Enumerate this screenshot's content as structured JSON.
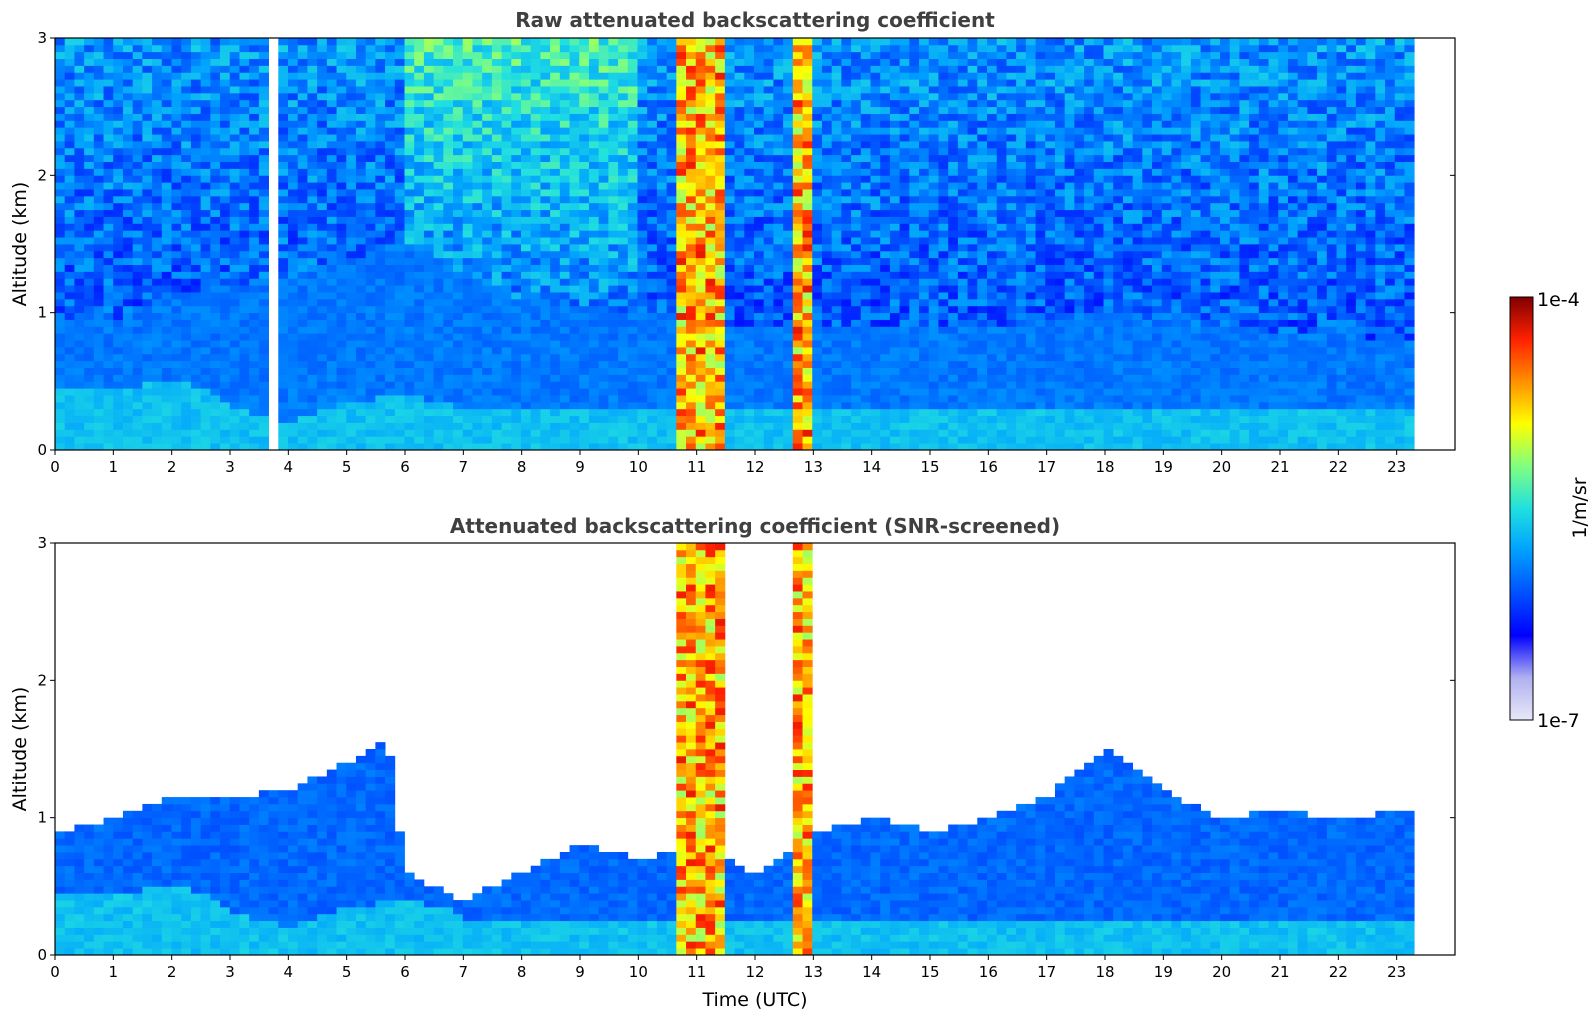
{
  "chart_data": [
    {
      "type": "heatmap",
      "title": "Raw attenuated backscattering coefficient",
      "xlabel": "",
      "ylabel": "Altitude (km)",
      "xlim": [
        0,
        24
      ],
      "ylim": [
        0,
        3
      ],
      "x_ticks": [
        "0",
        "1",
        "2",
        "3",
        "4",
        "5",
        "6",
        "7",
        "8",
        "9",
        "10",
        "11",
        "12",
        "13",
        "14",
        "15",
        "16",
        "17",
        "18",
        "19",
        "20",
        "21",
        "22",
        "23"
      ],
      "y_ticks": [
        "0",
        "1",
        "2",
        "3"
      ],
      "data_extent_x": [
        0,
        23.3
      ],
      "features": {
        "boundary_layer_top_km": [
          [
            0,
            0.95
          ],
          [
            1,
            0.95
          ],
          [
            1.5,
            1.05
          ],
          [
            2,
            1.15
          ],
          [
            3,
            1.2
          ],
          [
            4,
            1.25
          ],
          [
            5,
            1.4
          ],
          [
            6,
            1.5
          ],
          [
            8,
            1.1
          ],
          [
            10,
            1.0
          ],
          [
            12,
            0.9
          ],
          [
            14,
            0.9
          ],
          [
            16,
            0.9
          ],
          [
            18,
            1.0
          ],
          [
            20,
            0.9
          ],
          [
            23.3,
            0.8
          ]
        ],
        "aerosol_layer_top_km": [
          [
            0,
            0.45
          ],
          [
            1,
            0.45
          ],
          [
            2,
            0.5
          ],
          [
            2.5,
            0.45
          ],
          [
            3,
            0.3
          ],
          [
            4,
            0.2
          ],
          [
            5,
            0.35
          ],
          [
            6,
            0.4
          ],
          [
            7,
            0.3
          ]
        ],
        "cloud_columns_utc": [
          {
            "x0": 10.6,
            "x1": 11.5,
            "top_km": 3.0
          },
          {
            "x0": 12.7,
            "x1": 12.95,
            "top_km": 3.0
          }
        ],
        "gaps_utc": [
          [
            3.65,
            3.78
          ]
        ]
      }
    },
    {
      "type": "heatmap",
      "title": "Attenuated backscattering coefficient (SNR-screened)",
      "xlabel": "Time (UTC)",
      "ylabel": "Altitude (km)",
      "xlim": [
        0,
        24
      ],
      "ylim": [
        0,
        3
      ],
      "x_ticks": [
        "0",
        "1",
        "2",
        "3",
        "4",
        "5",
        "6",
        "7",
        "8",
        "9",
        "10",
        "11",
        "12",
        "13",
        "14",
        "15",
        "16",
        "17",
        "18",
        "19",
        "20",
        "21",
        "22",
        "23"
      ],
      "y_ticks": [
        "0",
        "1",
        "2",
        "3"
      ],
      "data_extent_x": [
        0,
        23.3
      ],
      "features": {
        "screened_top_km": [
          [
            0,
            0.9
          ],
          [
            1,
            1.0
          ],
          [
            2,
            1.15
          ],
          [
            3,
            1.15
          ],
          [
            4,
            1.2
          ],
          [
            5,
            1.4
          ],
          [
            5.7,
            1.6
          ],
          [
            6,
            0.6
          ],
          [
            7,
            0.4
          ],
          [
            8,
            0.6
          ],
          [
            9,
            0.8
          ],
          [
            10,
            0.7
          ],
          [
            11,
            0.8
          ],
          [
            12,
            0.6
          ],
          [
            13,
            0.9
          ],
          [
            14,
            1.0
          ],
          [
            15,
            0.9
          ],
          [
            16,
            1.0
          ],
          [
            17,
            1.15
          ],
          [
            18,
            1.5
          ],
          [
            19,
            1.2
          ],
          [
            20,
            1.0
          ],
          [
            21,
            1.05
          ],
          [
            22,
            1.0
          ],
          [
            23.3,
            1.05
          ]
        ]
      }
    }
  ],
  "colorbar": {
    "label": "1/m/sr",
    "max_label": "1e-4",
    "min_label": "1e-7",
    "scale": "log",
    "colormap": [
      "#e8e8f8",
      "#b0b0f0",
      "#0000ff",
      "#0050ff",
      "#00a0ff",
      "#20e0e0",
      "#80ff80",
      "#ffff00",
      "#ff9000",
      "#ff2000",
      "#800000"
    ]
  }
}
